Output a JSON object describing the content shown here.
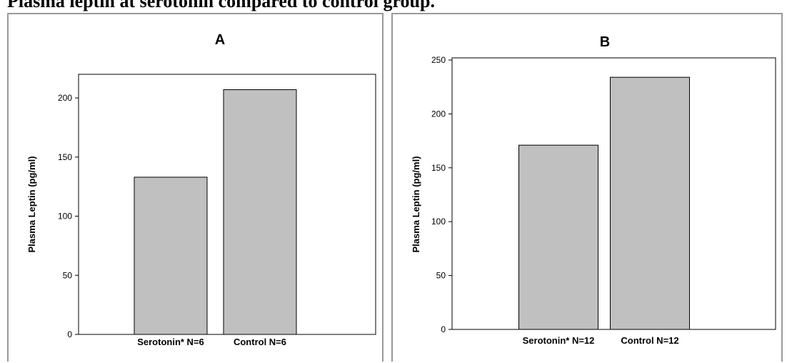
{
  "caption": "Plasma leptin at serotonin compared to control group.",
  "colors": {
    "bar_fill": "#c0c0c0",
    "bar_stroke": "#000000",
    "panel_border": "#9a9a9a"
  },
  "chart_data": [
    {
      "type": "bar",
      "title": "A",
      "ylabel": "Plasma Leptin (pg/ml)",
      "xlabel": "",
      "categories": [
        "Serotonin* N=6",
        "Control N=6"
      ],
      "values": [
        133,
        207
      ],
      "ylim": [
        0,
        220
      ],
      "yticks": [
        0,
        50,
        100,
        150,
        200
      ],
      "grid": false
    },
    {
      "type": "bar",
      "title": "B",
      "ylabel": "Plasma Leptin (pg/ml)",
      "xlabel": "",
      "categories": [
        "Serotonin* N=12",
        "Control N=12"
      ],
      "values": [
        171,
        234
      ],
      "ylim": [
        0,
        252
      ],
      "yticks": [
        0,
        50,
        100,
        150,
        200,
        250
      ],
      "grid": false
    }
  ]
}
